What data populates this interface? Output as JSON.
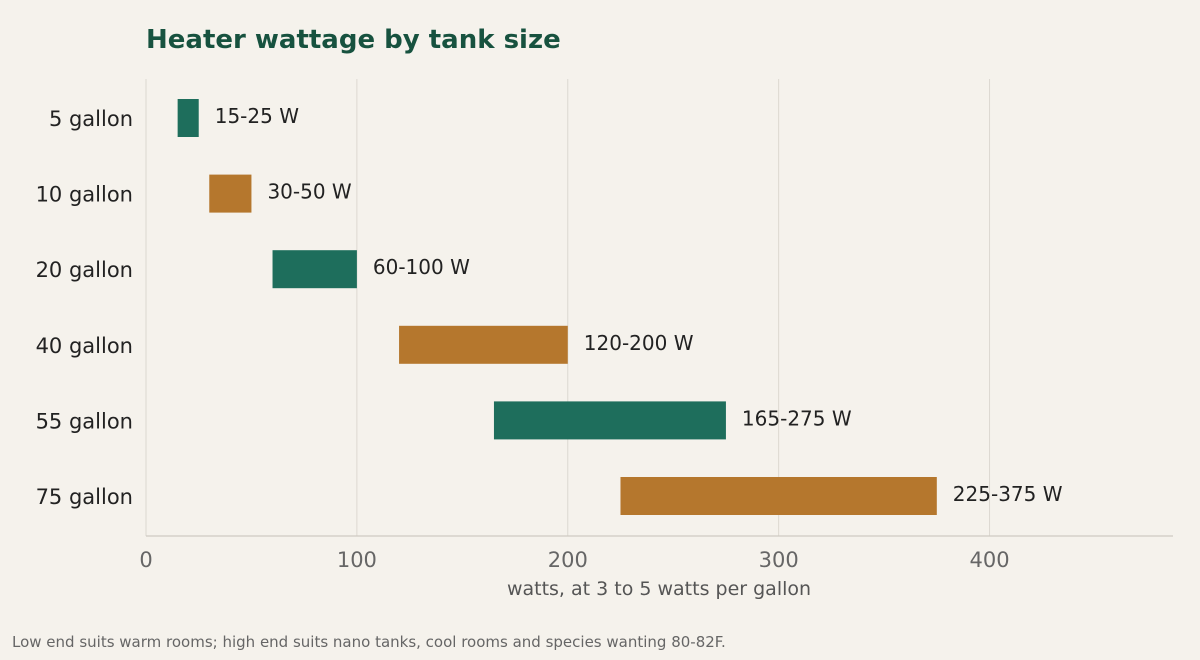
{
  "chart_data": {
    "type": "bar",
    "orientation": "horizontal",
    "bar_style": "floating range",
    "title": "Heater wattage by tank size",
    "xlabel": "watts, at 3 to 5 watts per gallon",
    "ylabel": "",
    "xlim": [
      0,
      487
    ],
    "xticks": [
      0,
      100,
      200,
      300,
      400
    ],
    "xtick_labels": [
      "0",
      "100",
      "200",
      "300",
      "400"
    ],
    "grid": "vertical",
    "legend": "none",
    "categories": [
      "5 gallon",
      "10 gallon",
      "20 gallon",
      "40 gallon",
      "55 gallon",
      "75 gallon"
    ],
    "ranges": [
      [
        15,
        25
      ],
      [
        30,
        50
      ],
      [
        60,
        100
      ],
      [
        120,
        200
      ],
      [
        165,
        275
      ],
      [
        225,
        375
      ]
    ],
    "data_labels": [
      "15-25 W",
      "30-50 W",
      "60-100 W",
      "120-200 W",
      "165-275 W",
      "225-375 W"
    ],
    "bar_colors": [
      "#1e6e5c",
      "#b5772d",
      "#1e6e5c",
      "#b5772d",
      "#1e6e5c",
      "#b5772d"
    ],
    "footnote": "Low end suits warm rooms; high end suits nano tanks, cool rooms and species wanting 80-82F."
  },
  "colors": {
    "background": "#f5f2ec",
    "title": "#17523f",
    "green": "#1e6e5c",
    "amber": "#b5772d"
  }
}
